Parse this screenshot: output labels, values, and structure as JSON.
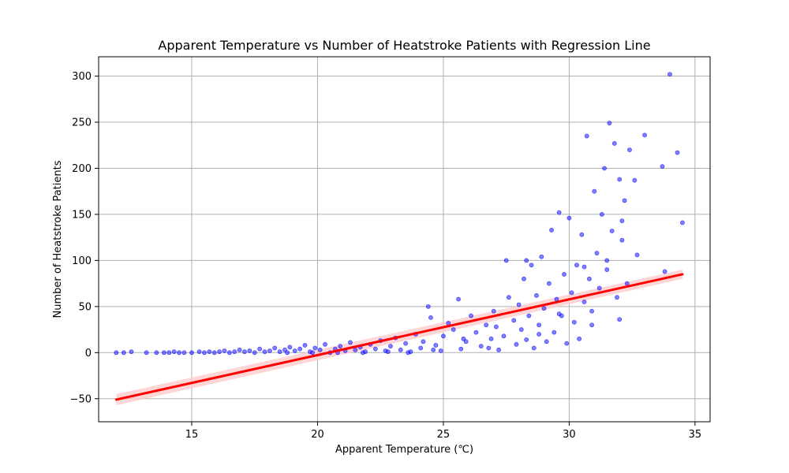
{
  "chart_data": {
    "type": "scatter",
    "title": "Apparent Temperature vs Number of Heatstroke Patients with Regression Line",
    "xlabel": "Apparent Temperature (℃)",
    "ylabel": "Number of Heatstroke Patients",
    "xlim": [
      11.3,
      35.6
    ],
    "ylim": [
      -75,
      321
    ],
    "xticks": [
      15,
      20,
      25,
      30,
      35
    ],
    "yticks": [
      -50,
      0,
      50,
      100,
      150,
      200,
      250,
      300
    ],
    "grid": true,
    "legend": "none",
    "colors": {
      "points": "#0000ff",
      "regression_line": "#ff0000",
      "confidence_band": "#ffcccc"
    },
    "series": [
      {
        "kind": "scatter",
        "points": [
          [
            12.0,
            0
          ],
          [
            12.3,
            0
          ],
          [
            12.6,
            1
          ],
          [
            13.2,
            0
          ],
          [
            13.6,
            0
          ],
          [
            13.9,
            0
          ],
          [
            14.1,
            0
          ],
          [
            14.3,
            1
          ],
          [
            14.5,
            0
          ],
          [
            14.7,
            0
          ],
          [
            15.0,
            0
          ],
          [
            15.3,
            1
          ],
          [
            15.5,
            0
          ],
          [
            15.7,
            1
          ],
          [
            15.9,
            0
          ],
          [
            16.1,
            1
          ],
          [
            16.3,
            2
          ],
          [
            16.5,
            0
          ],
          [
            16.7,
            1
          ],
          [
            16.9,
            3
          ],
          [
            17.1,
            1
          ],
          [
            17.3,
            2
          ],
          [
            17.5,
            0
          ],
          [
            17.7,
            4
          ],
          [
            17.9,
            1
          ],
          [
            18.1,
            2
          ],
          [
            18.3,
            5
          ],
          [
            18.5,
            1
          ],
          [
            18.7,
            3
          ],
          [
            18.9,
            6
          ],
          [
            19.1,
            2
          ],
          [
            19.3,
            4
          ],
          [
            19.5,
            8
          ],
          [
            19.7,
            1
          ],
          [
            19.9,
            5
          ],
          [
            20.1,
            3
          ],
          [
            20.3,
            9
          ],
          [
            20.5,
            0
          ],
          [
            20.7,
            4
          ],
          [
            20.9,
            7
          ],
          [
            21.1,
            2
          ],
          [
            21.3,
            11
          ],
          [
            21.5,
            3
          ],
          [
            21.7,
            6
          ],
          [
            21.9,
            1
          ],
          [
            22.1,
            9
          ],
          [
            22.3,
            4
          ],
          [
            22.5,
            13
          ],
          [
            22.7,
            2
          ],
          [
            22.9,
            7
          ],
          [
            23.1,
            16
          ],
          [
            23.3,
            3
          ],
          [
            23.5,
            10
          ],
          [
            23.7,
            1
          ],
          [
            23.9,
            20
          ],
          [
            24.1,
            5
          ],
          [
            24.2,
            12
          ],
          [
            24.4,
            50
          ],
          [
            24.5,
            38
          ],
          [
            24.7,
            8
          ],
          [
            24.9,
            2
          ],
          [
            25.0,
            18
          ],
          [
            25.2,
            32
          ],
          [
            25.4,
            25
          ],
          [
            25.6,
            58
          ],
          [
            25.7,
            4
          ],
          [
            25.9,
            12
          ],
          [
            26.1,
            40
          ],
          [
            26.3,
            22
          ],
          [
            26.5,
            7
          ],
          [
            26.7,
            30
          ],
          [
            26.9,
            15
          ],
          [
            27.0,
            45
          ],
          [
            27.2,
            3
          ],
          [
            27.4,
            18
          ],
          [
            27.6,
            60
          ],
          [
            27.8,
            35
          ],
          [
            27.9,
            9
          ],
          [
            28.0,
            52
          ],
          [
            28.1,
            25
          ],
          [
            28.2,
            80
          ],
          [
            28.3,
            14
          ],
          [
            28.4,
            40
          ],
          [
            28.5,
            95
          ],
          [
            28.6,
            5
          ],
          [
            28.7,
            62
          ],
          [
            28.8,
            30
          ],
          [
            28.9,
            104
          ],
          [
            29.0,
            48
          ],
          [
            29.1,
            12
          ],
          [
            29.2,
            75
          ],
          [
            29.3,
            133
          ],
          [
            29.4,
            22
          ],
          [
            29.5,
            58
          ],
          [
            29.6,
            152
          ],
          [
            29.7,
            40
          ],
          [
            29.8,
            85
          ],
          [
            29.9,
            10
          ],
          [
            30.0,
            146
          ],
          [
            30.1,
            65
          ],
          [
            30.2,
            33
          ],
          [
            30.3,
            95
          ],
          [
            30.4,
            15
          ],
          [
            30.5,
            128
          ],
          [
            30.6,
            55
          ],
          [
            30.7,
            235
          ],
          [
            30.8,
            80
          ],
          [
            30.9,
            45
          ],
          [
            31.0,
            175
          ],
          [
            31.1,
            108
          ],
          [
            31.2,
            70
          ],
          [
            31.3,
            150
          ],
          [
            31.4,
            200
          ],
          [
            31.5,
            90
          ],
          [
            31.6,
            249
          ],
          [
            31.7,
            132
          ],
          [
            31.8,
            227
          ],
          [
            31.9,
            60
          ],
          [
            32.0,
            188
          ],
          [
            32.1,
            122
          ],
          [
            32.2,
            165
          ],
          [
            32.3,
            75
          ],
          [
            32.4,
            220
          ],
          [
            32.6,
            187
          ],
          [
            32.7,
            106
          ],
          [
            33.0,
            236
          ],
          [
            33.7,
            202
          ],
          [
            33.8,
            88
          ],
          [
            34.0,
            302
          ],
          [
            34.3,
            217
          ],
          [
            34.5,
            141
          ],
          [
            27.5,
            100
          ],
          [
            28.3,
            100
          ],
          [
            30.6,
            93
          ],
          [
            31.5,
            100
          ],
          [
            32.0,
            36
          ],
          [
            32.1,
            143
          ],
          [
            30.9,
            30
          ],
          [
            29.6,
            42
          ],
          [
            28.8,
            20
          ],
          [
            26.8,
            5
          ],
          [
            27.1,
            28
          ],
          [
            25.8,
            15
          ],
          [
            24.6,
            3
          ],
          [
            23.6,
            0
          ],
          [
            22.8,
            1
          ],
          [
            21.8,
            0
          ],
          [
            20.8,
            0
          ],
          [
            19.8,
            0
          ],
          [
            18.8,
            0
          ]
        ]
      },
      {
        "kind": "regression_line",
        "points": [
          [
            12.0,
            -51
          ],
          [
            34.5,
            85
          ]
        ],
        "confidence_band": {
          "lower": [
            [
              12.0,
              -57
            ],
            [
              34.5,
              80
            ]
          ],
          "upper": [
            [
              12.0,
              -45
            ],
            [
              34.5,
              90
            ]
          ]
        }
      }
    ]
  }
}
